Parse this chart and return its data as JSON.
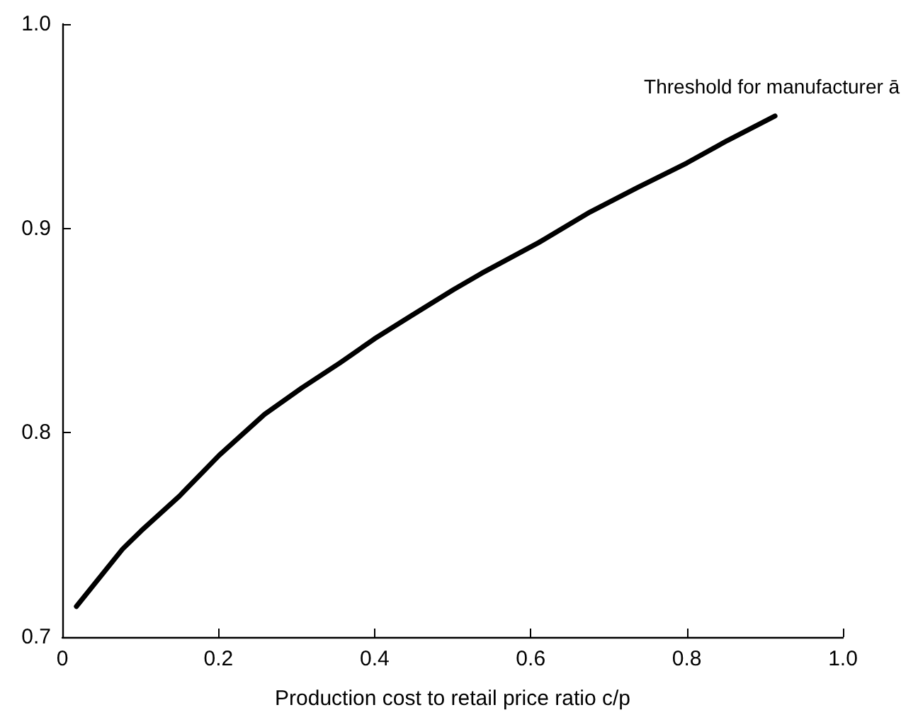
{
  "chart_data": {
    "type": "line",
    "xlabel": "Production cost to retail price ratio c/p",
    "x": [
      0.018,
      0.077,
      0.101,
      0.15,
      0.201,
      0.259,
      0.307,
      0.355,
      0.4,
      0.446,
      0.501,
      0.537,
      0.61,
      0.676,
      0.737,
      0.8,
      0.852,
      0.913
    ],
    "series": [
      {
        "color": "#000000",
        "values": [
          0.715,
          0.743,
          0.752,
          0.769,
          0.789,
          0.809,
          0.822,
          0.834,
          0.846,
          0.857,
          0.87,
          0.878,
          0.893,
          0.908,
          0.92,
          0.932,
          0.943,
          0.955
        ]
      }
    ],
    "annotations": [
      {
        "text": "Threshold for manufacturer ā",
        "x": 0.913,
        "y": 0.955
      }
    ],
    "xlim": [
      0,
      1
    ],
    "xticks": [
      0,
      0.2,
      0.4,
      0.6,
      0.8,
      {
        "value": 1,
        "label": "1.0"
      }
    ],
    "ylim": [
      0.7,
      1
    ],
    "yticks": [
      0.7,
      0.8,
      0.9,
      {
        "value": 1,
        "label": "1.0"
      }
    ],
    "grid": false,
    "marker": "none",
    "line_style": "solid"
  }
}
